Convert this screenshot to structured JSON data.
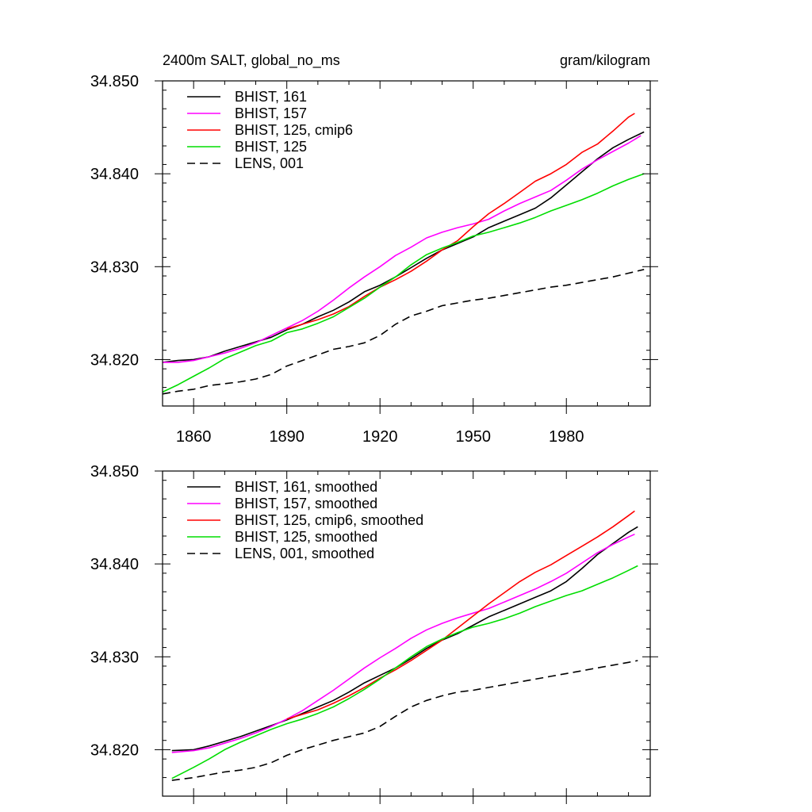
{
  "chart_data": [
    {
      "type": "line",
      "title_left": "2400m SALT, global_no_ms",
      "title_right": "gram/kilogram",
      "xlim": [
        1850,
        2007
      ],
      "ylim": [
        34.815,
        34.85
      ],
      "xticks": [
        1860,
        1890,
        1920,
        1950,
        1980
      ],
      "xtick_labels": [
        "1860",
        "1890",
        "1920",
        "1950",
        "1980"
      ],
      "yticks": [
        34.82,
        34.83,
        34.84,
        34.85
      ],
      "ytick_labels": [
        "34.820",
        "34.830",
        "34.840",
        "34.850"
      ],
      "legend_position": "top-left",
      "series": [
        {
          "name": "BHIST, 161",
          "color": "#000000",
          "dash": "solid",
          "x": [
            1850,
            1855,
            1860,
            1865,
            1870,
            1875,
            1880,
            1885,
            1890,
            1895,
            1900,
            1905,
            1910,
            1915,
            1920,
            1925,
            1930,
            1935,
            1940,
            1945,
            1950,
            1955,
            1960,
            1965,
            1970,
            1975,
            1980,
            1985,
            1990,
            1995,
            2000,
            2005
          ],
          "y": [
            34.8197,
            34.8199,
            34.82,
            34.8203,
            34.8209,
            34.8214,
            34.8219,
            34.8224,
            34.8232,
            34.8238,
            34.8246,
            34.8253,
            34.8262,
            34.8273,
            34.828,
            34.8289,
            34.8299,
            34.8309,
            34.8318,
            34.8325,
            34.8332,
            34.8342,
            34.8349,
            34.8356,
            34.8363,
            34.8374,
            34.8388,
            34.8402,
            34.8416,
            34.8428,
            34.8437,
            34.8445
          ]
        },
        {
          "name": "BHIST, 157",
          "color": "#ff00ff",
          "dash": "solid",
          "x": [
            1850,
            1855,
            1860,
            1865,
            1870,
            1875,
            1880,
            1885,
            1890,
            1895,
            1900,
            1905,
            1910,
            1915,
            1920,
            1925,
            1930,
            1935,
            1940,
            1945,
            1950,
            1955,
            1960,
            1965,
            1970,
            1975,
            1980,
            1985,
            1990,
            1995,
            2000,
            2004
          ],
          "y": [
            34.8197,
            34.8197,
            34.8199,
            34.8203,
            34.8207,
            34.8212,
            34.8218,
            34.8226,
            34.8234,
            34.8242,
            34.8252,
            34.8264,
            34.8277,
            34.8289,
            34.83,
            34.8312,
            34.8321,
            34.8331,
            34.8337,
            34.8342,
            34.8346,
            34.8351,
            34.836,
            34.8368,
            34.8375,
            34.8382,
            34.8393,
            34.8405,
            34.8415,
            34.8424,
            34.8433,
            34.8441
          ]
        },
        {
          "name": "BHIST, 125, cmip6",
          "color": "#ff0000",
          "dash": "solid",
          "x": [
            1890,
            1895,
            1900,
            1905,
            1910,
            1915,
            1920,
            1925,
            1930,
            1935,
            1940,
            1945,
            1950,
            1955,
            1960,
            1965,
            1970,
            1975,
            1980,
            1985,
            1990,
            1995,
            2000,
            2002
          ],
          "y": [
            34.8233,
            34.8238,
            34.8243,
            34.8249,
            34.8257,
            34.8268,
            34.8278,
            34.8286,
            34.8295,
            34.8306,
            34.8318,
            34.8328,
            34.8343,
            34.8357,
            34.8368,
            34.838,
            34.8392,
            34.84,
            34.841,
            34.8423,
            34.8432,
            34.8446,
            34.8461,
            34.8465
          ]
        },
        {
          "name": "BHIST, 125",
          "color": "#00dd00",
          "dash": "solid",
          "x": [
            1850,
            1855,
            1860,
            1865,
            1870,
            1875,
            1880,
            1885,
            1890,
            1895,
            1900,
            1905,
            1910,
            1915,
            1920,
            1925,
            1930,
            1935,
            1940,
            1945,
            1950,
            1955,
            1960,
            1965,
            1970,
            1975,
            1980,
            1985,
            1990,
            1995,
            2000,
            2005
          ],
          "y": [
            34.8165,
            34.8173,
            34.8182,
            34.8191,
            34.8201,
            34.8208,
            34.8215,
            34.822,
            34.8229,
            34.8233,
            34.8239,
            34.8246,
            34.8256,
            34.8266,
            34.8278,
            34.8289,
            34.8302,
            34.8313,
            34.832,
            34.8326,
            34.8333,
            34.8337,
            34.8342,
            34.8347,
            34.8353,
            34.836,
            34.8366,
            34.8372,
            34.8379,
            34.8387,
            34.8394,
            34.84
          ]
        },
        {
          "name": "LENS, 001",
          "color": "#000000",
          "dash": "dashed",
          "x": [
            1850,
            1855,
            1860,
            1865,
            1870,
            1875,
            1880,
            1885,
            1890,
            1895,
            1900,
            1905,
            1910,
            1915,
            1920,
            1925,
            1930,
            1935,
            1940,
            1945,
            1950,
            1955,
            1960,
            1965,
            1970,
            1975,
            1980,
            1985,
            1990,
            1995,
            2000,
            2005
          ],
          "y": [
            34.8163,
            34.8166,
            34.8168,
            34.8172,
            34.8174,
            34.8176,
            34.8179,
            34.8184,
            34.8193,
            34.8199,
            34.8205,
            34.8211,
            34.8214,
            34.8218,
            34.8226,
            34.8238,
            34.8247,
            34.8252,
            34.8258,
            34.8261,
            34.8264,
            34.8266,
            34.8269,
            34.8272,
            34.8275,
            34.8278,
            34.828,
            34.8283,
            34.8286,
            34.8289,
            34.8293,
            34.8297
          ]
        }
      ]
    },
    {
      "type": "line",
      "xlim": [
        1850,
        2007
      ],
      "ylim": [
        34.815,
        34.85
      ],
      "xticks": [
        1860,
        1890,
        1920,
        1950,
        1980
      ],
      "yticks": [
        34.82,
        34.83,
        34.84,
        34.85
      ],
      "ytick_labels": [
        "34.820",
        "34.830",
        "34.840",
        "34.850"
      ],
      "legend_position": "top-left",
      "series": [
        {
          "name": "BHIST, 161, smoothed",
          "color": "#000000",
          "dash": "solid",
          "x": [
            1853,
            1860,
            1865,
            1870,
            1875,
            1880,
            1885,
            1890,
            1895,
            1900,
            1905,
            1910,
            1915,
            1920,
            1925,
            1930,
            1935,
            1940,
            1945,
            1950,
            1955,
            1960,
            1965,
            1970,
            1975,
            1980,
            1985,
            1990,
            1995,
            2000,
            2003
          ],
          "y": [
            34.8199,
            34.82,
            34.8204,
            34.8209,
            34.8214,
            34.822,
            34.8226,
            34.8232,
            34.8239,
            34.8246,
            34.8253,
            34.8262,
            34.8272,
            34.828,
            34.8288,
            34.8298,
            34.8309,
            34.8318,
            34.8325,
            34.8334,
            34.8343,
            34.835,
            34.8357,
            34.8364,
            34.8371,
            34.8381,
            34.8395,
            34.841,
            34.8422,
            34.8434,
            34.844
          ]
        },
        {
          "name": "BHIST, 157, smoothed",
          "color": "#ff00ff",
          "dash": "solid",
          "x": [
            1853,
            1860,
            1865,
            1870,
            1875,
            1880,
            1885,
            1890,
            1895,
            1900,
            1905,
            1910,
            1915,
            1920,
            1925,
            1930,
            1935,
            1940,
            1945,
            1950,
            1955,
            1960,
            1965,
            1970,
            1975,
            1980,
            1985,
            1990,
            1995,
            2000,
            2002
          ],
          "y": [
            34.8197,
            34.8199,
            34.8202,
            34.8207,
            34.8212,
            34.8218,
            34.8225,
            34.8233,
            34.8242,
            34.8253,
            34.8264,
            34.8276,
            34.8288,
            34.8299,
            34.8309,
            34.832,
            34.8329,
            34.8336,
            34.8342,
            34.8347,
            34.8352,
            34.8359,
            34.8366,
            34.8373,
            34.8381,
            34.839,
            34.8401,
            34.8412,
            34.8421,
            34.8429,
            34.8432
          ]
        },
        {
          "name": "BHIST, 125, cmip6, smoothed",
          "color": "#ff0000",
          "dash": "solid",
          "x": [
            1890,
            1895,
            1900,
            1905,
            1910,
            1915,
            1920,
            1925,
            1930,
            1935,
            1940,
            1945,
            1950,
            1955,
            1960,
            1965,
            1970,
            1975,
            1980,
            1985,
            1990,
            1995,
            2000,
            2002
          ],
          "y": [
            34.8233,
            34.8238,
            34.8243,
            34.825,
            34.8258,
            34.8267,
            34.8277,
            34.8286,
            34.8296,
            34.8307,
            34.8318,
            34.8331,
            34.8344,
            34.8357,
            34.8369,
            34.8381,
            34.8391,
            34.8399,
            34.8409,
            34.8419,
            34.8429,
            34.844,
            34.8452,
            34.8457
          ]
        },
        {
          "name": "BHIST, 125, smoothed",
          "color": "#00dd00",
          "dash": "solid",
          "x": [
            1853,
            1860,
            1865,
            1870,
            1875,
            1880,
            1885,
            1890,
            1895,
            1900,
            1905,
            1910,
            1915,
            1920,
            1925,
            1930,
            1935,
            1940,
            1945,
            1950,
            1955,
            1960,
            1965,
            1970,
            1975,
            1980,
            1985,
            1990,
            1995,
            2000,
            2003
          ],
          "y": [
            34.8169,
            34.8181,
            34.819,
            34.82,
            34.8208,
            34.8215,
            34.8222,
            34.8228,
            34.8233,
            34.8239,
            34.8246,
            34.8255,
            34.8265,
            34.8276,
            34.8288,
            34.83,
            34.8311,
            34.8319,
            34.8326,
            34.8332,
            34.8336,
            34.8341,
            34.8347,
            34.8354,
            34.836,
            34.8366,
            34.8371,
            34.8378,
            34.8385,
            34.8393,
            34.8398
          ]
        },
        {
          "name": "LENS, 001, smoothed",
          "color": "#000000",
          "dash": "dashed",
          "x": [
            1853,
            1860,
            1865,
            1870,
            1875,
            1880,
            1885,
            1890,
            1895,
            1900,
            1905,
            1910,
            1915,
            1920,
            1925,
            1930,
            1935,
            1940,
            1945,
            1950,
            1955,
            1960,
            1965,
            1970,
            1975,
            1980,
            1985,
            1990,
            1995,
            2000,
            2003
          ],
          "y": [
            34.8167,
            34.817,
            34.8173,
            34.8176,
            34.8178,
            34.8181,
            34.8186,
            34.8194,
            34.82,
            34.8205,
            34.821,
            34.8214,
            34.8218,
            34.8225,
            34.8236,
            34.8246,
            34.8253,
            34.8258,
            34.8262,
            34.8264,
            34.8267,
            34.827,
            34.8273,
            34.8276,
            34.8279,
            34.8282,
            34.8285,
            34.8288,
            34.8291,
            34.8294,
            34.8296
          ]
        }
      ]
    }
  ]
}
